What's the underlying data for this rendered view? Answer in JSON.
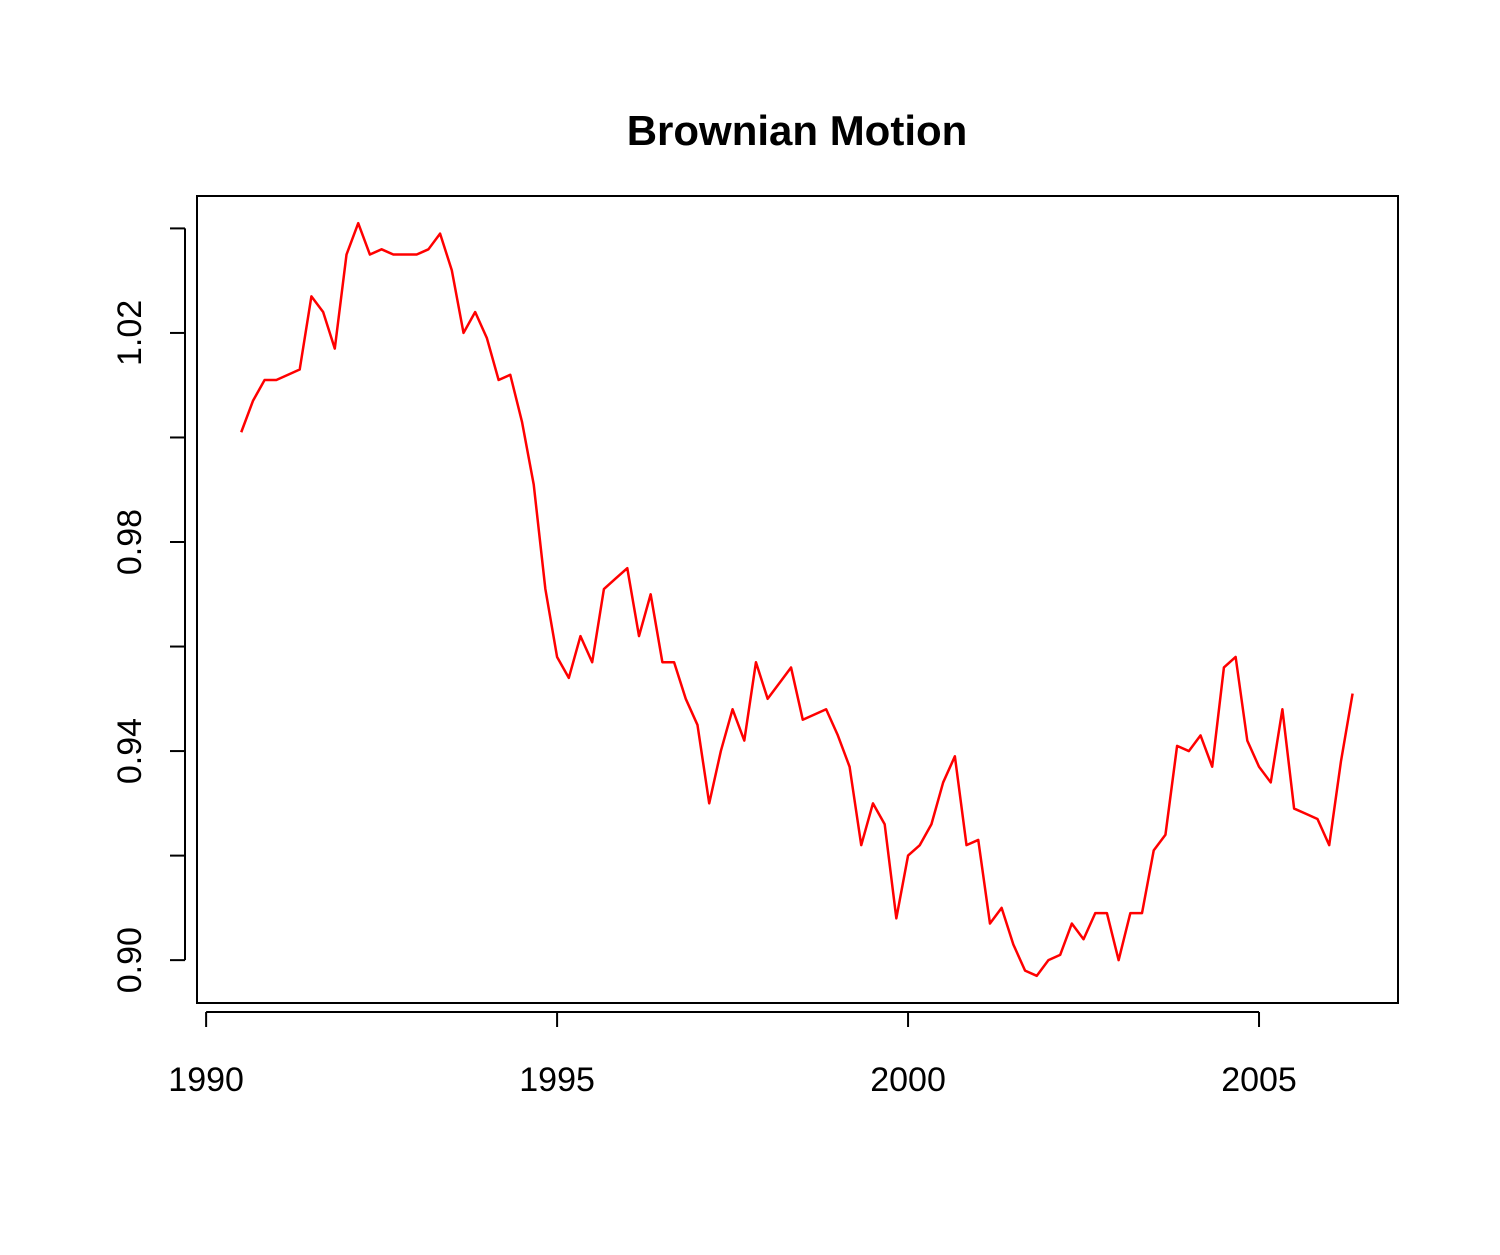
{
  "chart_data": {
    "type": "line",
    "title": "Brownian Motion",
    "color": "#ff0000",
    "x": [
      1990.5,
      1990.667,
      1990.833,
      1991,
      1991.167,
      1991.333,
      1991.5,
      1991.667,
      1991.833,
      1992,
      1992.167,
      1992.333,
      1992.5,
      1992.667,
      1992.833,
      1993,
      1993.167,
      1993.333,
      1993.5,
      1993.667,
      1993.833,
      1994,
      1994.167,
      1994.333,
      1994.5,
      1994.667,
      1994.833,
      1995,
      1995.167,
      1995.333,
      1995.5,
      1995.667,
      1995.833,
      1996,
      1996.167,
      1996.333,
      1996.5,
      1996.667,
      1996.833,
      1997,
      1997.167,
      1997.333,
      1997.5,
      1997.667,
      1997.833,
      1998,
      1998.167,
      1998.333,
      1998.5,
      1998.667,
      1998.833,
      1999,
      1999.167,
      1999.333,
      1999.5,
      1999.667,
      1999.833,
      2000,
      2000.167,
      2000.333,
      2000.5,
      2000.667,
      2000.833,
      2001,
      2001.167,
      2001.333,
      2001.5,
      2001.667,
      2001.833,
      2002,
      2002.167,
      2002.333,
      2002.5,
      2002.667,
      2002.833,
      2003,
      2003.167,
      2003.333,
      2003.5,
      2003.667,
      2003.833,
      2004,
      2004.167,
      2004.333,
      2004.5,
      2004.667,
      2004.833,
      2005,
      2005.167,
      2005.333,
      2005.5,
      2005.667,
      2005.833,
      2006,
      2006.167,
      2006.333
    ],
    "values": [
      1.001,
      1.007,
      1.011,
      1.011,
      1.012,
      1.013,
      1.027,
      1.024,
      1.017,
      1.035,
      1.041,
      1.035,
      1.036,
      1.035,
      1.035,
      1.035,
      1.036,
      1.039,
      1.032,
      1.02,
      1.024,
      1.019,
      1.011,
      1.012,
      1.003,
      0.991,
      0.971,
      0.958,
      0.954,
      0.962,
      0.957,
      0.971,
      0.973,
      0.975,
      0.962,
      0.97,
      0.957,
      0.957,
      0.95,
      0.945,
      0.93,
      0.94,
      0.948,
      0.942,
      0.957,
      0.95,
      0.953,
      0.956,
      0.946,
      0.947,
      0.948,
      0.943,
      0.937,
      0.922,
      0.93,
      0.926,
      0.908,
      0.92,
      0.922,
      0.926,
      0.934,
      0.939,
      0.922,
      0.923,
      0.907,
      0.91,
      0.903,
      0.898,
      0.897,
      0.9,
      0.901,
      0.907,
      0.904,
      0.909,
      0.909,
      0.9,
      0.909,
      0.909,
      0.921,
      0.924,
      0.941,
      0.94,
      0.943,
      0.937,
      0.956,
      0.958,
      0.942,
      0.937,
      0.934,
      0.948,
      0.929,
      0.928,
      0.927,
      0.922,
      0.938,
      0.951
    ],
    "xlim": [
      1989.87,
      2006.98
    ],
    "xticks": [
      1990,
      1995,
      2000,
      2005
    ],
    "ylim": [
      0.8918,
      1.0462
    ],
    "yticks": [
      {
        "value": 0.9,
        "label": "0.90"
      },
      0.94,
      0.98,
      1.02
    ],
    "yticks_unlabeled": [
      0.92,
      0.96,
      1,
      1.04
    ],
    "grid": false
  }
}
